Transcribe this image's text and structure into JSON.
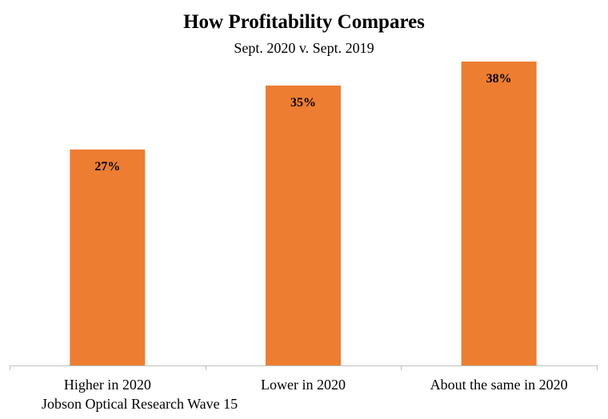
{
  "chart_data": {
    "type": "bar",
    "title": "How Profitability Compares",
    "subtitle": "Sept. 2020 v. Sept. 2019",
    "categories": [
      "Higher in 2020",
      "Lower in 2020",
      "About the same in 2020"
    ],
    "values": [
      27,
      35,
      38
    ],
    "value_labels": [
      "27%",
      "35%",
      "38%"
    ],
    "ylim": [
      0,
      40
    ],
    "grid": false,
    "bar_color": "#ED7D31",
    "source": "Jobson Optical Research Wave 15"
  }
}
